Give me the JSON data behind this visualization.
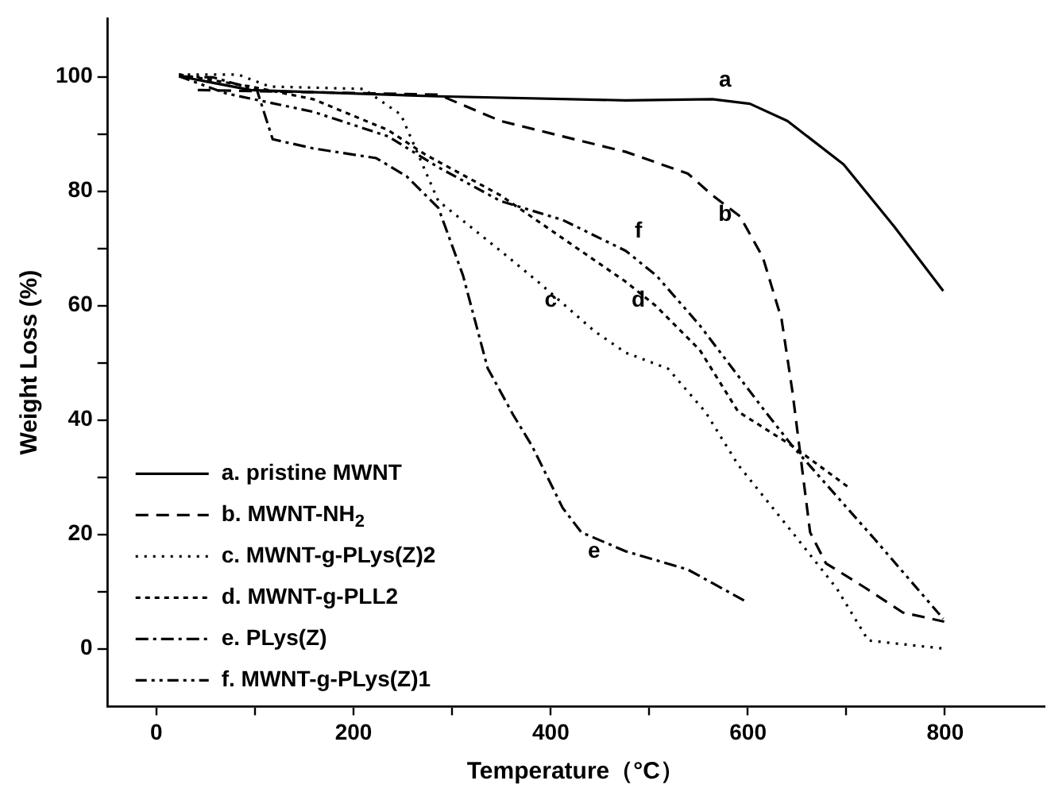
{
  "chart_data": {
    "type": "line",
    "xlabel": "Temperature（°C）",
    "ylabel": "Weight Loss (%)",
    "xlim": [
      -50,
      900
    ],
    "ylim": [
      -10,
      110
    ],
    "xticks": [
      0,
      {
        "value": 100,
        "label": null
      },
      200,
      {
        "value": 300,
        "label": null
      },
      400,
      {
        "value": 500,
        "label": null
      },
      600,
      {
        "value": 700,
        "label": null
      },
      800
    ],
    "yticks": [
      0,
      {
        "value": 10,
        "label": null
      },
      20,
      {
        "value": 30,
        "label": null
      },
      40,
      {
        "value": 50,
        "label": null
      },
      60,
      {
        "value": 70,
        "label": null
      },
      80,
      {
        "value": 90,
        "label": null
      },
      100
    ],
    "grid": false,
    "legend": "bottom left",
    "marker": "none",
    "series": [
      {
        "name": "a. pristine MWNT",
        "color": "#000000",
        "line_style": "solid",
        "x": [
          23,
          96,
          286,
          476,
          564,
          602,
          640,
          697,
          748,
          798
        ],
        "values": [
          100,
          97.6,
          96.5,
          95.8,
          96,
          95.2,
          92.2,
          84.6,
          73.8,
          62.5
        ]
      },
      {
        "name": "b. MWNT-NH$_{2}$",
        "color": "#000000",
        "line_style": "dashed",
        "x": [
          42,
          286,
          349,
          412,
          476,
          539,
          564,
          592,
          615,
          634,
          645,
          652,
          663,
          679,
          719,
          757,
          799
        ],
        "values": [
          97.6,
          96.8,
          92.2,
          89.5,
          86.8,
          83,
          79.2,
          75.5,
          68.4,
          57.6,
          45,
          35.4,
          20.3,
          14.9,
          10.6,
          6.3,
          4.7
        ]
      },
      {
        "name": "c. MWNT-g-PLys(Z)2",
        "color": "#000000",
        "line_style": "dotted",
        "x": [
          23,
          83,
          115,
          210,
          248,
          286,
          349,
          387,
          444,
          476,
          519,
          557,
          590,
          645,
          690,
          722,
          798
        ],
        "values": [
          100.3,
          100.3,
          98.2,
          97.8,
          93.3,
          78.2,
          69.5,
          64.1,
          55.5,
          51.7,
          48.9,
          41.3,
          32.1,
          20.3,
          10.5,
          1.4,
          0
        ]
      },
      {
        "name": "d. MWNT-g-PLL2",
        "color": "#000000",
        "line_style": "dashed",
        "x": [
          23,
          96,
          159,
          235,
          273,
          349,
          412,
          476,
          507,
          551,
          590,
          645,
          701
        ],
        "values": [
          100.3,
          98.2,
          96,
          90.6,
          86.3,
          79.2,
          71.7,
          64.1,
          59.8,
          52.2,
          41.4,
          35.4,
          28.3
        ]
      },
      {
        "name": "e. PLys(Z)",
        "color": "#000000",
        "line_style": "dashed",
        "x": [
          23,
          58,
          102,
          118,
          159,
          223,
          254,
          286,
          311,
          336,
          362,
          381,
          412,
          431,
          476,
          539,
          596
        ],
        "values": [
          100,
          99.8,
          97.6,
          89,
          87.4,
          85.7,
          82.5,
          77,
          65.2,
          49,
          40.8,
          35.4,
          24.6,
          20.3,
          17,
          13.8,
          8.4
        ]
      },
      {
        "name": "f. MWNT-g-PLys(Z)1",
        "color": "#000000",
        "line_style": "dashed",
        "x": [
          23,
          71,
          159,
          235,
          286,
          349,
          412,
          476,
          507,
          551,
          618,
          645,
          728,
          798
        ],
        "values": [
          100,
          97,
          93.8,
          89.5,
          84.1,
          78.2,
          74.9,
          69.5,
          65.2,
          56.5,
          41.3,
          35.4,
          19.2,
          5.2
        ]
      }
    ],
    "annotations": [
      {
        "text": "a",
        "x": 564,
        "y": 96
      },
      {
        "text": "b",
        "x": 564,
        "y": 79.2
      },
      {
        "text": "c",
        "x": 387,
        "y": 64.1
      },
      {
        "text": "d",
        "x": 476,
        "y": 64.1
      },
      {
        "text": "e",
        "x": 431,
        "y": 20.3
      },
      {
        "text": "f",
        "x": 476,
        "y": 69.5
      }
    ]
  }
}
